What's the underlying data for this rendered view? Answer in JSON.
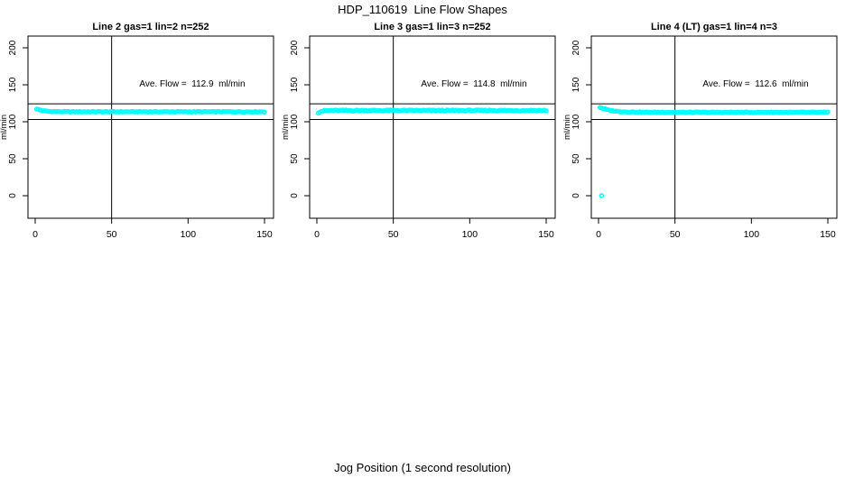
{
  "figure": {
    "title": "HDP_110619  Line Flow Shapes",
    "outer_xlabel": "Jog Position (1 second resolution)",
    "background": "#ffffff",
    "accent_color": "#00ffff"
  },
  "chart_data": [
    {
      "type": "scatter",
      "name": "line2",
      "title": "Line 2 gas=1 lin=2 n=252",
      "ylabel": "ml/min",
      "xlabel": "",
      "gas": 1,
      "lin": 2,
      "n": 252,
      "ave_flow": 112.9,
      "annotation": "Ave. Flow =  112.9  ml/min",
      "x_ticks": [
        0,
        50,
        100,
        150
      ],
      "y_ticks": [
        0,
        50,
        100,
        150,
        200
      ],
      "xlim": [
        0,
        150
      ],
      "ylim": [
        0,
        200
      ],
      "grid": false,
      "legend": false,
      "vline_x": 50,
      "hlines": [
        124.3,
        103
      ],
      "point_color": "#00ffff",
      "trace": {
        "x_start": 1,
        "x_end": 150,
        "points": 150,
        "base": 113.5,
        "start_value": 117.5,
        "decay_tc": 4,
        "jitter": 1.0
      },
      "outliers": []
    },
    {
      "type": "scatter",
      "name": "line3",
      "title": "Line 3 gas=1 lin=3 n=252",
      "ylabel": "ml/min",
      "xlabel": "",
      "gas": 1,
      "lin": 3,
      "n": 252,
      "ave_flow": 114.8,
      "annotation": "Ave. Flow =  114.8  ml/min",
      "x_ticks": [
        0,
        50,
        100,
        150
      ],
      "y_ticks": [
        0,
        50,
        100,
        150,
        200
      ],
      "xlim": [
        0,
        150
      ],
      "ylim": [
        0,
        200
      ],
      "grid": false,
      "legend": false,
      "vline_x": 50,
      "hlines": [
        124.3,
        103
      ],
      "point_color": "#00ffff",
      "trace": {
        "x_start": 1,
        "x_end": 150,
        "points": 150,
        "base": 115.2,
        "start_value": 112.5,
        "decay_tc": 2,
        "jitter": 1.5
      },
      "outliers": []
    },
    {
      "type": "scatter",
      "name": "line4",
      "title": "Line 4 (LT) gas=1 lin=4 n=3",
      "ylabel": "ml/min",
      "xlabel": "",
      "gas": 1,
      "lin": 4,
      "n": 3,
      "ave_flow": 112.6,
      "annotation": "Ave. Flow =  112.6  ml/min",
      "x_ticks": [
        0,
        50,
        100,
        150
      ],
      "y_ticks": [
        0,
        50,
        100,
        150,
        200
      ],
      "xlim": [
        0,
        150
      ],
      "ylim": [
        0,
        200
      ],
      "grid": false,
      "legend": false,
      "vline_x": 50,
      "hlines": [
        124.3,
        103
      ],
      "point_color": "#00ffff",
      "trace": {
        "x_start": 1,
        "x_end": 150,
        "points": 150,
        "base": 112.8,
        "start_value": 119.5,
        "decay_tc": 7,
        "jitter": 1.0
      },
      "outliers": [
        {
          "x": 2,
          "y": 0
        }
      ]
    }
  ]
}
